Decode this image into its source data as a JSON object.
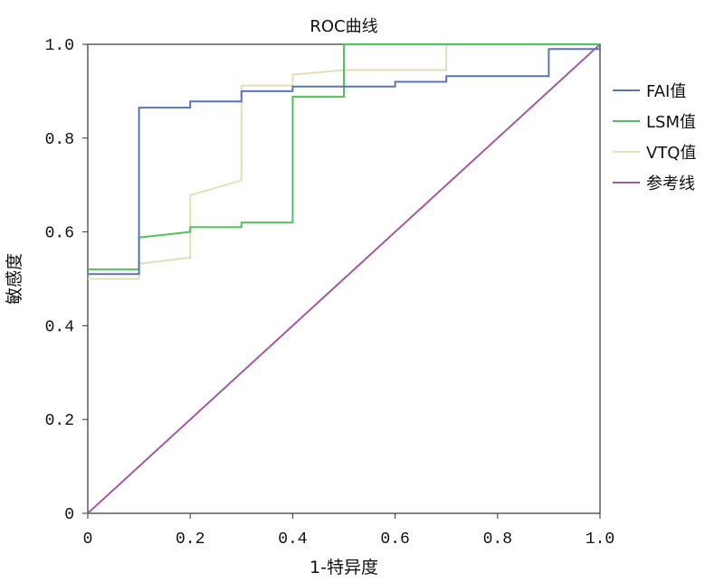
{
  "chart_data": {
    "type": "line",
    "title": "ROC曲线",
    "xlabel": "1-特异度",
    "ylabel": "敏感度",
    "xlim": [
      0,
      1
    ],
    "ylim": [
      0,
      1
    ],
    "x_ticks": [
      "0",
      "0.2",
      "0.4",
      "0.6",
      "0.8",
      "1.0"
    ],
    "y_ticks": [
      "0",
      "0.2",
      "0.4",
      "0.6",
      "0.8",
      "1.0"
    ],
    "legend_position": "right",
    "series": [
      {
        "name": "FAI值",
        "color": "#5b74b5",
        "points": [
          [
            0,
            0.51
          ],
          [
            0.1,
            0.51
          ],
          [
            0.1,
            0.865
          ],
          [
            0.2,
            0.865
          ],
          [
            0.2,
            0.878
          ],
          [
            0.3,
            0.878
          ],
          [
            0.3,
            0.9
          ],
          [
            0.4,
            0.9
          ],
          [
            0.4,
            0.91
          ],
          [
            0.6,
            0.91
          ],
          [
            0.6,
            0.92
          ],
          [
            0.7,
            0.92
          ],
          [
            0.7,
            0.932
          ],
          [
            0.9,
            0.932
          ],
          [
            0.9,
            0.99
          ],
          [
            1.0,
            0.99
          ],
          [
            1.0,
            1.0
          ]
        ]
      },
      {
        "name": "LSM值",
        "color": "#4ec25c",
        "points": [
          [
            0,
            0.52
          ],
          [
            0.1,
            0.52
          ],
          [
            0.1,
            0.588
          ],
          [
            0.2,
            0.6
          ],
          [
            0.2,
            0.61
          ],
          [
            0.3,
            0.61
          ],
          [
            0.3,
            0.62
          ],
          [
            0.4,
            0.62
          ],
          [
            0.4,
            0.888
          ],
          [
            0.5,
            0.888
          ],
          [
            0.5,
            1.0
          ],
          [
            1.0,
            1.0
          ]
        ]
      },
      {
        "name": "VTQ值",
        "color": "#e5dfb9",
        "points": [
          [
            0,
            0.5
          ],
          [
            0.1,
            0.5
          ],
          [
            0.1,
            0.532
          ],
          [
            0.2,
            0.545
          ],
          [
            0.2,
            0.678
          ],
          [
            0.3,
            0.71
          ],
          [
            0.3,
            0.912
          ],
          [
            0.4,
            0.912
          ],
          [
            0.4,
            0.935
          ],
          [
            0.5,
            0.945
          ],
          [
            0.7,
            0.945
          ],
          [
            0.7,
            1.0
          ],
          [
            1.0,
            1.0
          ]
        ]
      },
      {
        "name": "参考线",
        "color": "#a45aa0",
        "points": [
          [
            0,
            0
          ],
          [
            1.0,
            1.0
          ]
        ]
      }
    ]
  }
}
